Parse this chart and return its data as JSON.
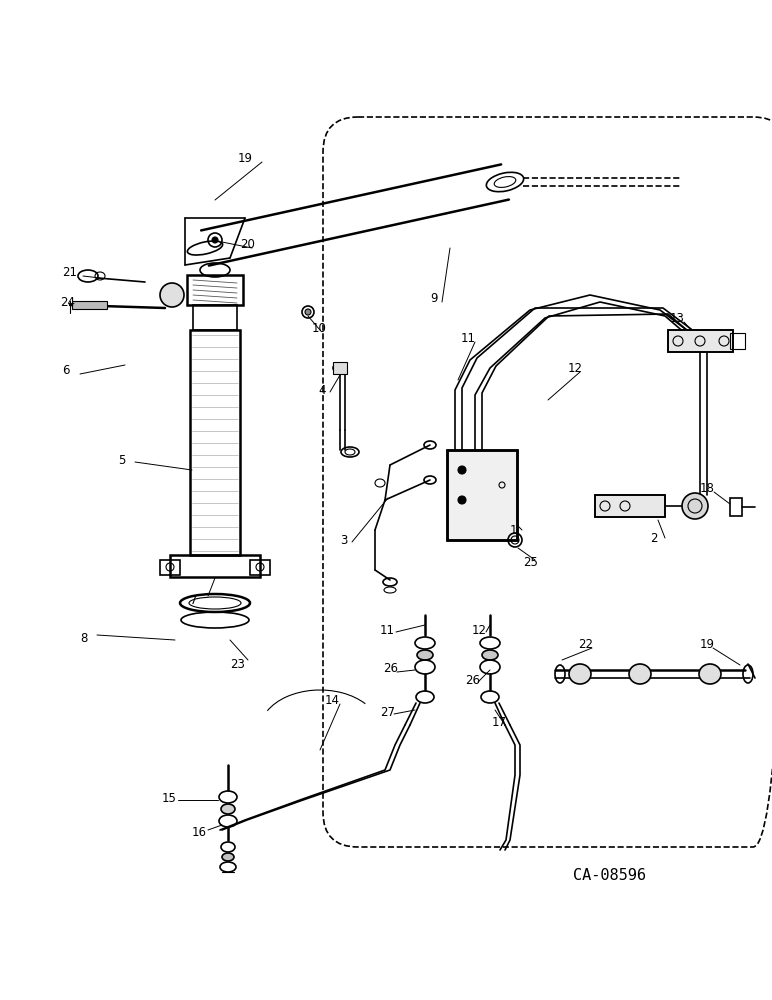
{
  "bg_color": "#ffffff",
  "line_color": "#000000",
  "fig_width": 7.72,
  "fig_height": 10.0,
  "watermark": "CA-08596"
}
